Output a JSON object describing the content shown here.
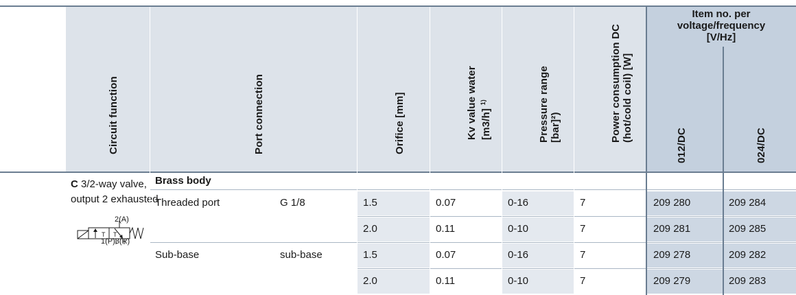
{
  "header": {
    "circuit_function": "Circuit function",
    "port_connection": "Port connection",
    "orifice": "Orifice [mm]",
    "kv_line1": "Kv value water",
    "kv_line2": "[m3/h]",
    "kv_sup": "1)",
    "pressure_line1": "Pressure range",
    "pressure_line2": "[bar]²)",
    "power_line1": "Power consumption DC",
    "power_line2": "(hot/cold coil) [W]",
    "item_no_line1": "Item no. per",
    "item_no_line2": "voltage/frequency",
    "item_no_line3": "[V/Hz]",
    "voltage_1": "012/DC",
    "voltage_2": "024/DC"
  },
  "circuit": {
    "code": "C",
    "desc_line1": "3/2-way valve,",
    "desc_line2": "output 2 exhausted",
    "symbol_top": "2(A)",
    "symbol_bottom": "1(P)3(R)",
    "symbol_t1": "T",
    "symbol_t2": "T"
  },
  "group": {
    "title": "Brass body"
  },
  "rows": [
    {
      "port": "Threaded port",
      "conn": "G 1/8",
      "orifice": "1.5",
      "kv": "0.07",
      "pressure": "0-16",
      "power": "7",
      "item_012": "209 280",
      "item_024": "209 284"
    },
    {
      "port": "",
      "conn": "",
      "orifice": "2.0",
      "kv": "0.11",
      "pressure": "0-10",
      "power": "7",
      "item_012": "209 281",
      "item_024": "209 285"
    },
    {
      "port": "Sub-base",
      "conn": "sub-base",
      "orifice": "1.5",
      "kv": "0.07",
      "pressure": "0-16",
      "power": "7",
      "item_012": "209 278",
      "item_024": "209 282"
    },
    {
      "port": "",
      "conn": "",
      "orifice": "2.0",
      "kv": "0.11",
      "pressure": "0-10",
      "power": "7",
      "item_012": "209 279",
      "item_024": "209 283"
    }
  ]
}
